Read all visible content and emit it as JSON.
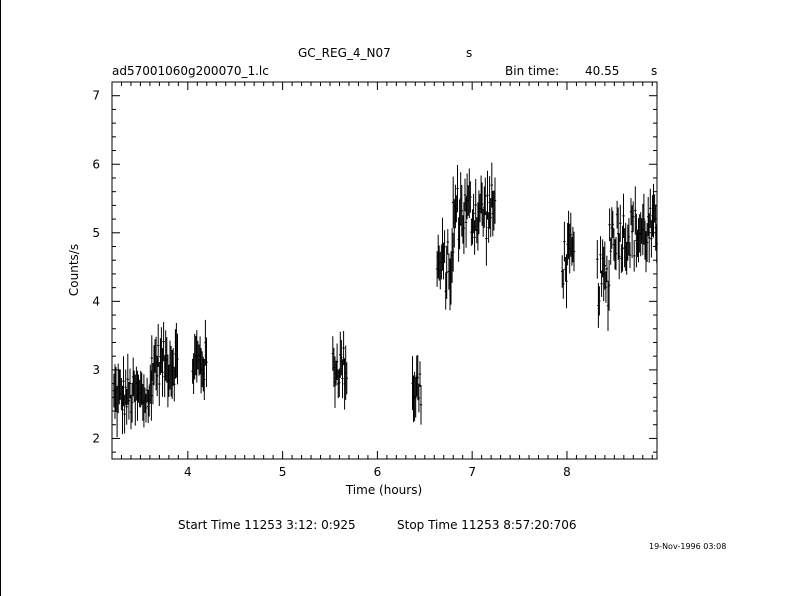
{
  "header": {
    "title": "GC_REG_4_N07",
    "title_unit": "s",
    "filename": "ad57001060g200070_1.lc",
    "bin_label": "Bin time:",
    "bin_value": "40.55",
    "bin_unit": "s"
  },
  "footer": {
    "start_label": "Start Time 11253  3:12: 0:925",
    "stop_label": "Stop Time 11253  8:57:20:706",
    "timestamp": "19-Nov-1996 03:08"
  },
  "chart_data": {
    "type": "line",
    "xlabel": "Time (hours)",
    "ylabel": "Counts/s",
    "xlim": [
      3.2,
      8.95
    ],
    "ylim": [
      1.7,
      7.2
    ],
    "x_ticks": [
      4,
      5,
      6,
      7,
      8
    ],
    "y_ticks": [
      2,
      3,
      4,
      5,
      6,
      7
    ],
    "grid": false,
    "style": "error-bars",
    "segments": [
      {
        "x_start": 3.22,
        "x_end": 3.62,
        "level": 2.6,
        "spread": 0.45
      },
      {
        "x_start": 3.62,
        "x_end": 3.9,
        "level": 3.1,
        "spread": 0.45
      },
      {
        "x_start": 4.05,
        "x_end": 4.2,
        "level": 3.1,
        "spread": 0.45
      },
      {
        "x_start": 5.53,
        "x_end": 5.68,
        "level": 3.05,
        "spread": 0.45
      },
      {
        "x_start": 6.37,
        "x_end": 6.47,
        "level": 2.75,
        "spread": 0.5
      },
      {
        "x_start": 6.63,
        "x_end": 6.8,
        "level": 4.5,
        "spread": 0.55
      },
      {
        "x_start": 6.8,
        "x_end": 7.25,
        "level": 5.3,
        "spread": 0.6
      },
      {
        "x_start": 7.95,
        "x_end": 8.08,
        "level": 4.6,
        "spread": 0.55
      },
      {
        "x_start": 8.32,
        "x_end": 8.45,
        "level": 4.3,
        "spread": 0.55
      },
      {
        "x_start": 8.45,
        "x_end": 8.95,
        "level": 5.0,
        "spread": 0.55
      }
    ]
  }
}
